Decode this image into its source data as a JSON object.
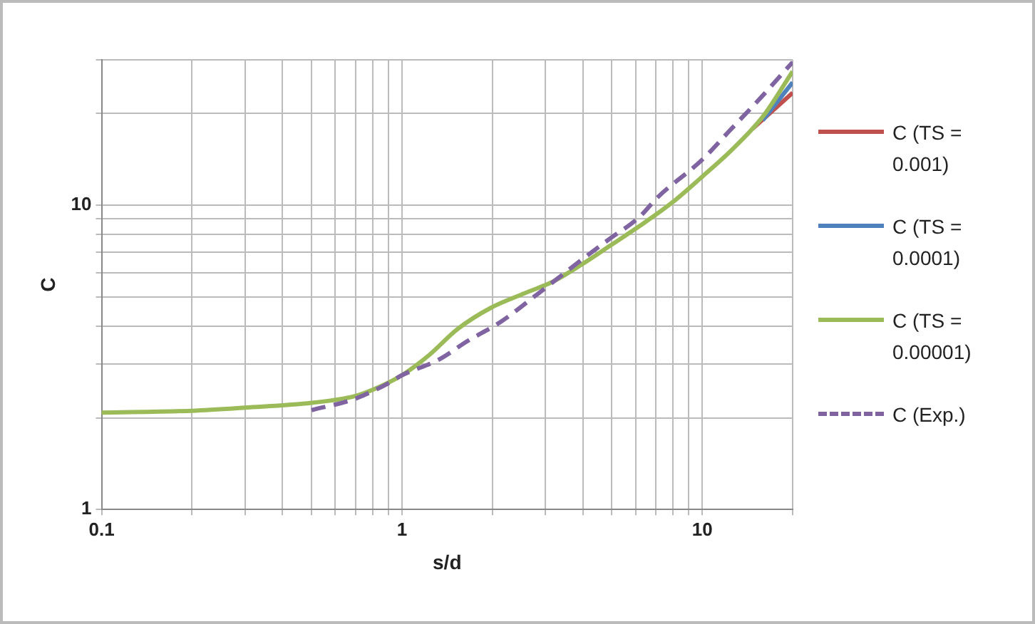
{
  "chart_data": {
    "type": "line",
    "xlabel": "s/d",
    "ylabel": "C",
    "log": "xy",
    "grid": true,
    "legend": "right",
    "marker": "none",
    "xlim": [
      0.1,
      20
    ],
    "ylim": [
      1,
      30
    ],
    "xticks": [
      0.1,
      {
        "value": 0.2,
        "label": null
      },
      {
        "value": 0.3,
        "label": null
      },
      {
        "value": 0.4,
        "label": null
      },
      {
        "value": 0.5,
        "label": null
      },
      {
        "value": 0.6,
        "label": null
      },
      {
        "value": 0.7,
        "label": null
      },
      {
        "value": 0.8,
        "label": null
      },
      {
        "value": 0.9,
        "label": null
      },
      1,
      {
        "value": 2,
        "label": null
      },
      {
        "value": 3,
        "label": null
      },
      {
        "value": 4,
        "label": null
      },
      {
        "value": 5,
        "label": null
      },
      {
        "value": 6,
        "label": null
      },
      {
        "value": 7,
        "label": null
      },
      {
        "value": 8,
        "label": null
      },
      {
        "value": 9,
        "label": null
      },
      10,
      {
        "value": 20,
        "label": null
      }
    ],
    "yticks": [
      1,
      {
        "value": 2,
        "label": null
      },
      {
        "value": 3,
        "label": null
      },
      {
        "value": 4,
        "label": null
      },
      {
        "value": 5,
        "label": null
      },
      {
        "value": 6,
        "label": null
      },
      {
        "value": 7,
        "label": null
      },
      {
        "value": 8,
        "label": null
      },
      {
        "value": 9,
        "label": null
      },
      10,
      {
        "value": 20,
        "label": null
      },
      {
        "value": 30,
        "label": null
      }
    ],
    "series": [
      {
        "name": "C (TS = 0.001)",
        "color": "#c0504d",
        "line_style": "solid",
        "x": [
          14.7,
          20
        ],
        "values": [
          17.8,
          23.4
        ]
      },
      {
        "name": "C (TS = 0.0001)",
        "color": "#4f81bd",
        "line_style": "solid",
        "x": [
          15.9,
          20
        ],
        "values": [
          19,
          25.3
        ]
      },
      {
        "name": "C (TS = 0.00001)",
        "color": "#9bbb59",
        "line_style": "solid",
        "x": [
          0.1,
          0.2,
          0.3,
          0.5,
          0.7,
          0.85,
          1,
          1.23,
          1.53,
          1.98,
          2.56,
          3.19,
          3.96,
          4.94,
          6.15,
          7.95,
          10,
          12.3,
          15.9,
          20
        ],
        "values": [
          2.08,
          2.11,
          2.16,
          2.24,
          2.36,
          2.54,
          2.76,
          3.21,
          3.91,
          4.6,
          5.13,
          5.61,
          6.37,
          7.36,
          8.5,
          10.2,
          12.4,
          14.9,
          19.5,
          27.5
        ]
      },
      {
        "name": "C (Exp.)",
        "color": "#8064a2",
        "line_style": "dashed",
        "x": [
          0.5,
          0.69,
          0.89,
          1,
          1.33,
          1.65,
          2.13,
          2.85,
          3.96,
          4.94,
          6.15,
          7.1,
          10,
          12.3,
          15.9,
          20
        ],
        "values": [
          2.12,
          2.3,
          2.58,
          2.76,
          3.11,
          3.57,
          4.13,
          5.13,
          6.6,
          7.77,
          9.1,
          10.6,
          14.1,
          17.5,
          22.9,
          29.5
        ]
      }
    ]
  }
}
